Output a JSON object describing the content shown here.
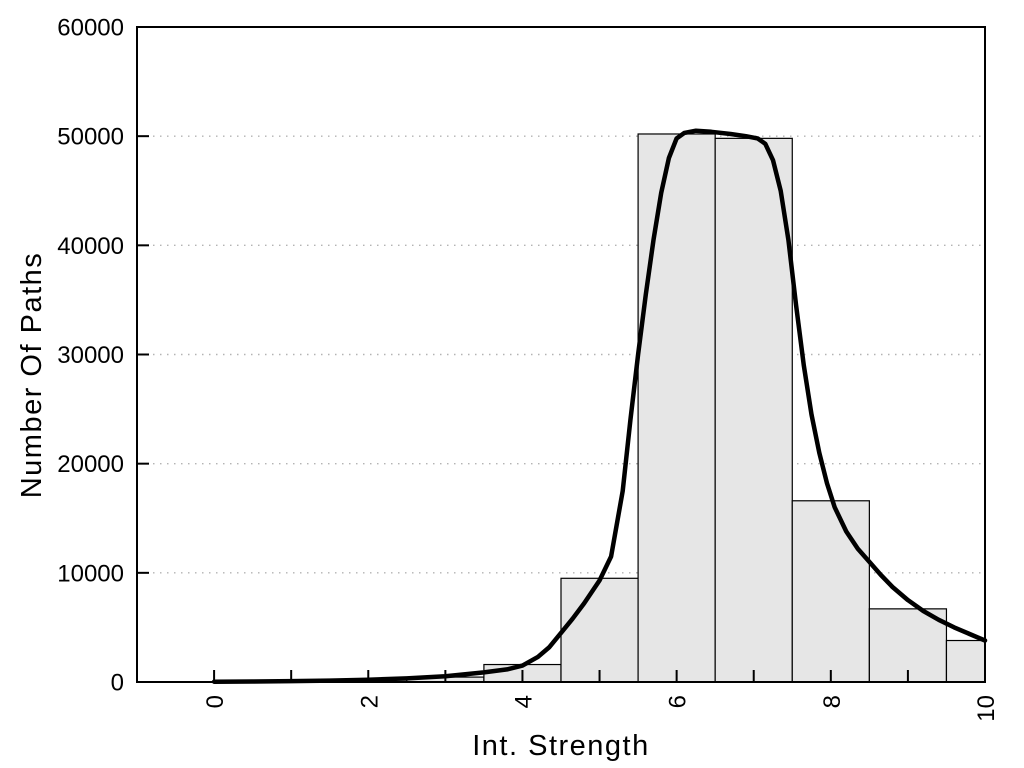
{
  "figure": {
    "background": "#ffffff",
    "text_color": "#000000",
    "grid_color": "#b3b3b3",
    "bar_fill": "#e6e6e6",
    "bar_stroke": "#000000",
    "curve_color": "#000000"
  },
  "chart_data": {
    "type": "bar",
    "subtype": "histogram_with_density_curve",
    "title": "",
    "xlabel": "Int. Strength",
    "ylabel": "Number Of Paths",
    "xlim": [
      -1,
      10
    ],
    "ylim": [
      0,
      60000
    ],
    "grid": {
      "y_dotted_levels": [
        10000,
        20000,
        30000,
        40000,
        50000
      ]
    },
    "legend": null,
    "x_minor_ticks": [
      0,
      1,
      2,
      3,
      4,
      5,
      6,
      7,
      8,
      9,
      10
    ],
    "x_labeled_ticks": [
      0,
      2,
      4,
      6,
      8,
      10
    ],
    "x_tick_labels": [
      "0",
      "2",
      "4",
      "6",
      "8",
      "10"
    ],
    "x_tick_labels_rotated_degrees": -90,
    "y_ticks": [
      0,
      10000,
      20000,
      30000,
      40000,
      50000,
      60000
    ],
    "y_tick_labels": [
      "0",
      "10000",
      "20000",
      "30000",
      "40000",
      "50000",
      "60000"
    ],
    "histogram": {
      "bin_width": 1.0,
      "bin_centers": [
        0,
        1,
        2,
        3,
        4,
        5,
        6,
        7,
        8,
        9,
        10
      ],
      "counts": [
        30,
        60,
        180,
        450,
        1600,
        9500,
        50200,
        49800,
        16600,
        6700,
        3800
      ],
      "note": "last bin clipped at x=10 plot edge"
    },
    "density_curve": {
      "points": [
        [
          0,
          30
        ],
        [
          0.5,
          50
        ],
        [
          1,
          80
        ],
        [
          1.5,
          130
        ],
        [
          2,
          210
        ],
        [
          2.5,
          330
        ],
        [
          3,
          520
        ],
        [
          3.5,
          880
        ],
        [
          3.8,
          1150
        ],
        [
          4,
          1500
        ],
        [
          4.2,
          2300
        ],
        [
          4.35,
          3200
        ],
        [
          4.5,
          4500
        ],
        [
          4.65,
          5800
        ],
        [
          4.8,
          7200
        ],
        [
          5,
          9300
        ],
        [
          5.15,
          11500
        ],
        [
          5.3,
          17500
        ],
        [
          5.4,
          24000
        ],
        [
          5.5,
          30000
        ],
        [
          5.6,
          35500
        ],
        [
          5.7,
          40500
        ],
        [
          5.8,
          44800
        ],
        [
          5.9,
          48000
        ],
        [
          6,
          49800
        ],
        [
          6.1,
          50300
        ],
        [
          6.25,
          50500
        ],
        [
          6.45,
          50400
        ],
        [
          6.7,
          50200
        ],
        [
          6.9,
          50000
        ],
        [
          7.05,
          49800
        ],
        [
          7.15,
          49300
        ],
        [
          7.25,
          47800
        ],
        [
          7.35,
          45000
        ],
        [
          7.45,
          40500
        ],
        [
          7.55,
          34500
        ],
        [
          7.65,
          29000
        ],
        [
          7.75,
          24500
        ],
        [
          7.85,
          21000
        ],
        [
          7.95,
          18200
        ],
        [
          8.05,
          16000
        ],
        [
          8.2,
          13800
        ],
        [
          8.35,
          12200
        ],
        [
          8.5,
          11000
        ],
        [
          8.65,
          9800
        ],
        [
          8.8,
          8700
        ],
        [
          9,
          7500
        ],
        [
          9.2,
          6500
        ],
        [
          9.4,
          5700
        ],
        [
          9.6,
          5000
        ],
        [
          9.8,
          4400
        ],
        [
          10,
          3800
        ]
      ]
    }
  }
}
